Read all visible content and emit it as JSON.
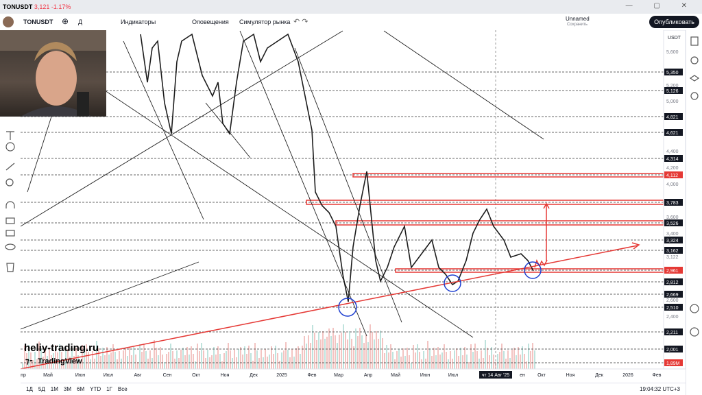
{
  "tab": {
    "symbol": "TONUSDT",
    "price": "3,121",
    "change": "-1.17%"
  },
  "toolbar": {
    "symbol": "TONUSDT",
    "interval": "Д",
    "indicators": "Индикаторы",
    "alerts": "Оповещения",
    "simulator": "Симулятор рынка",
    "layout_name": "Unnamed",
    "save": "Сохранить",
    "publish": "Опубликовать"
  },
  "price_axis": {
    "currency": "USDT",
    "labels": [
      "5,600",
      "5,350",
      "5,200",
      "5,126",
      "5,000",
      "4,821",
      "4,621",
      "4,400",
      "4,314",
      "4,200",
      "4,112",
      "4,000",
      "3,783",
      "3,600",
      "3,526",
      "3,400",
      "3,324",
      "3,162",
      "3,122",
      "2,961",
      "2,812",
      "2,669",
      "2,600",
      "2,510",
      "2,400",
      "2,211",
      "2,001",
      "1,89M"
    ]
  },
  "time_axis": {
    "labels": [
      "пр",
      "Май",
      "Июн",
      "Июл",
      "Авг",
      "Сен",
      "Окт",
      "Ноя",
      "Дек",
      "2025",
      "Фев",
      "Мар",
      "Апр",
      "Май",
      "Июн",
      "Июл",
      "чт 14 Авг '25",
      "ен",
      "Окт",
      "Ноя",
      "Дек",
      "2026",
      "Фев"
    ]
  },
  "watermark": {
    "site": "heliy-trading.ru",
    "brand": "TradingView"
  },
  "bottom_bar": {
    "ranges": [
      "1Д",
      "5Д",
      "1М",
      "3М",
      "6М",
      "YTD",
      "1Г",
      "Все"
    ],
    "clock": "19:04:32 UTC+3"
  }
}
